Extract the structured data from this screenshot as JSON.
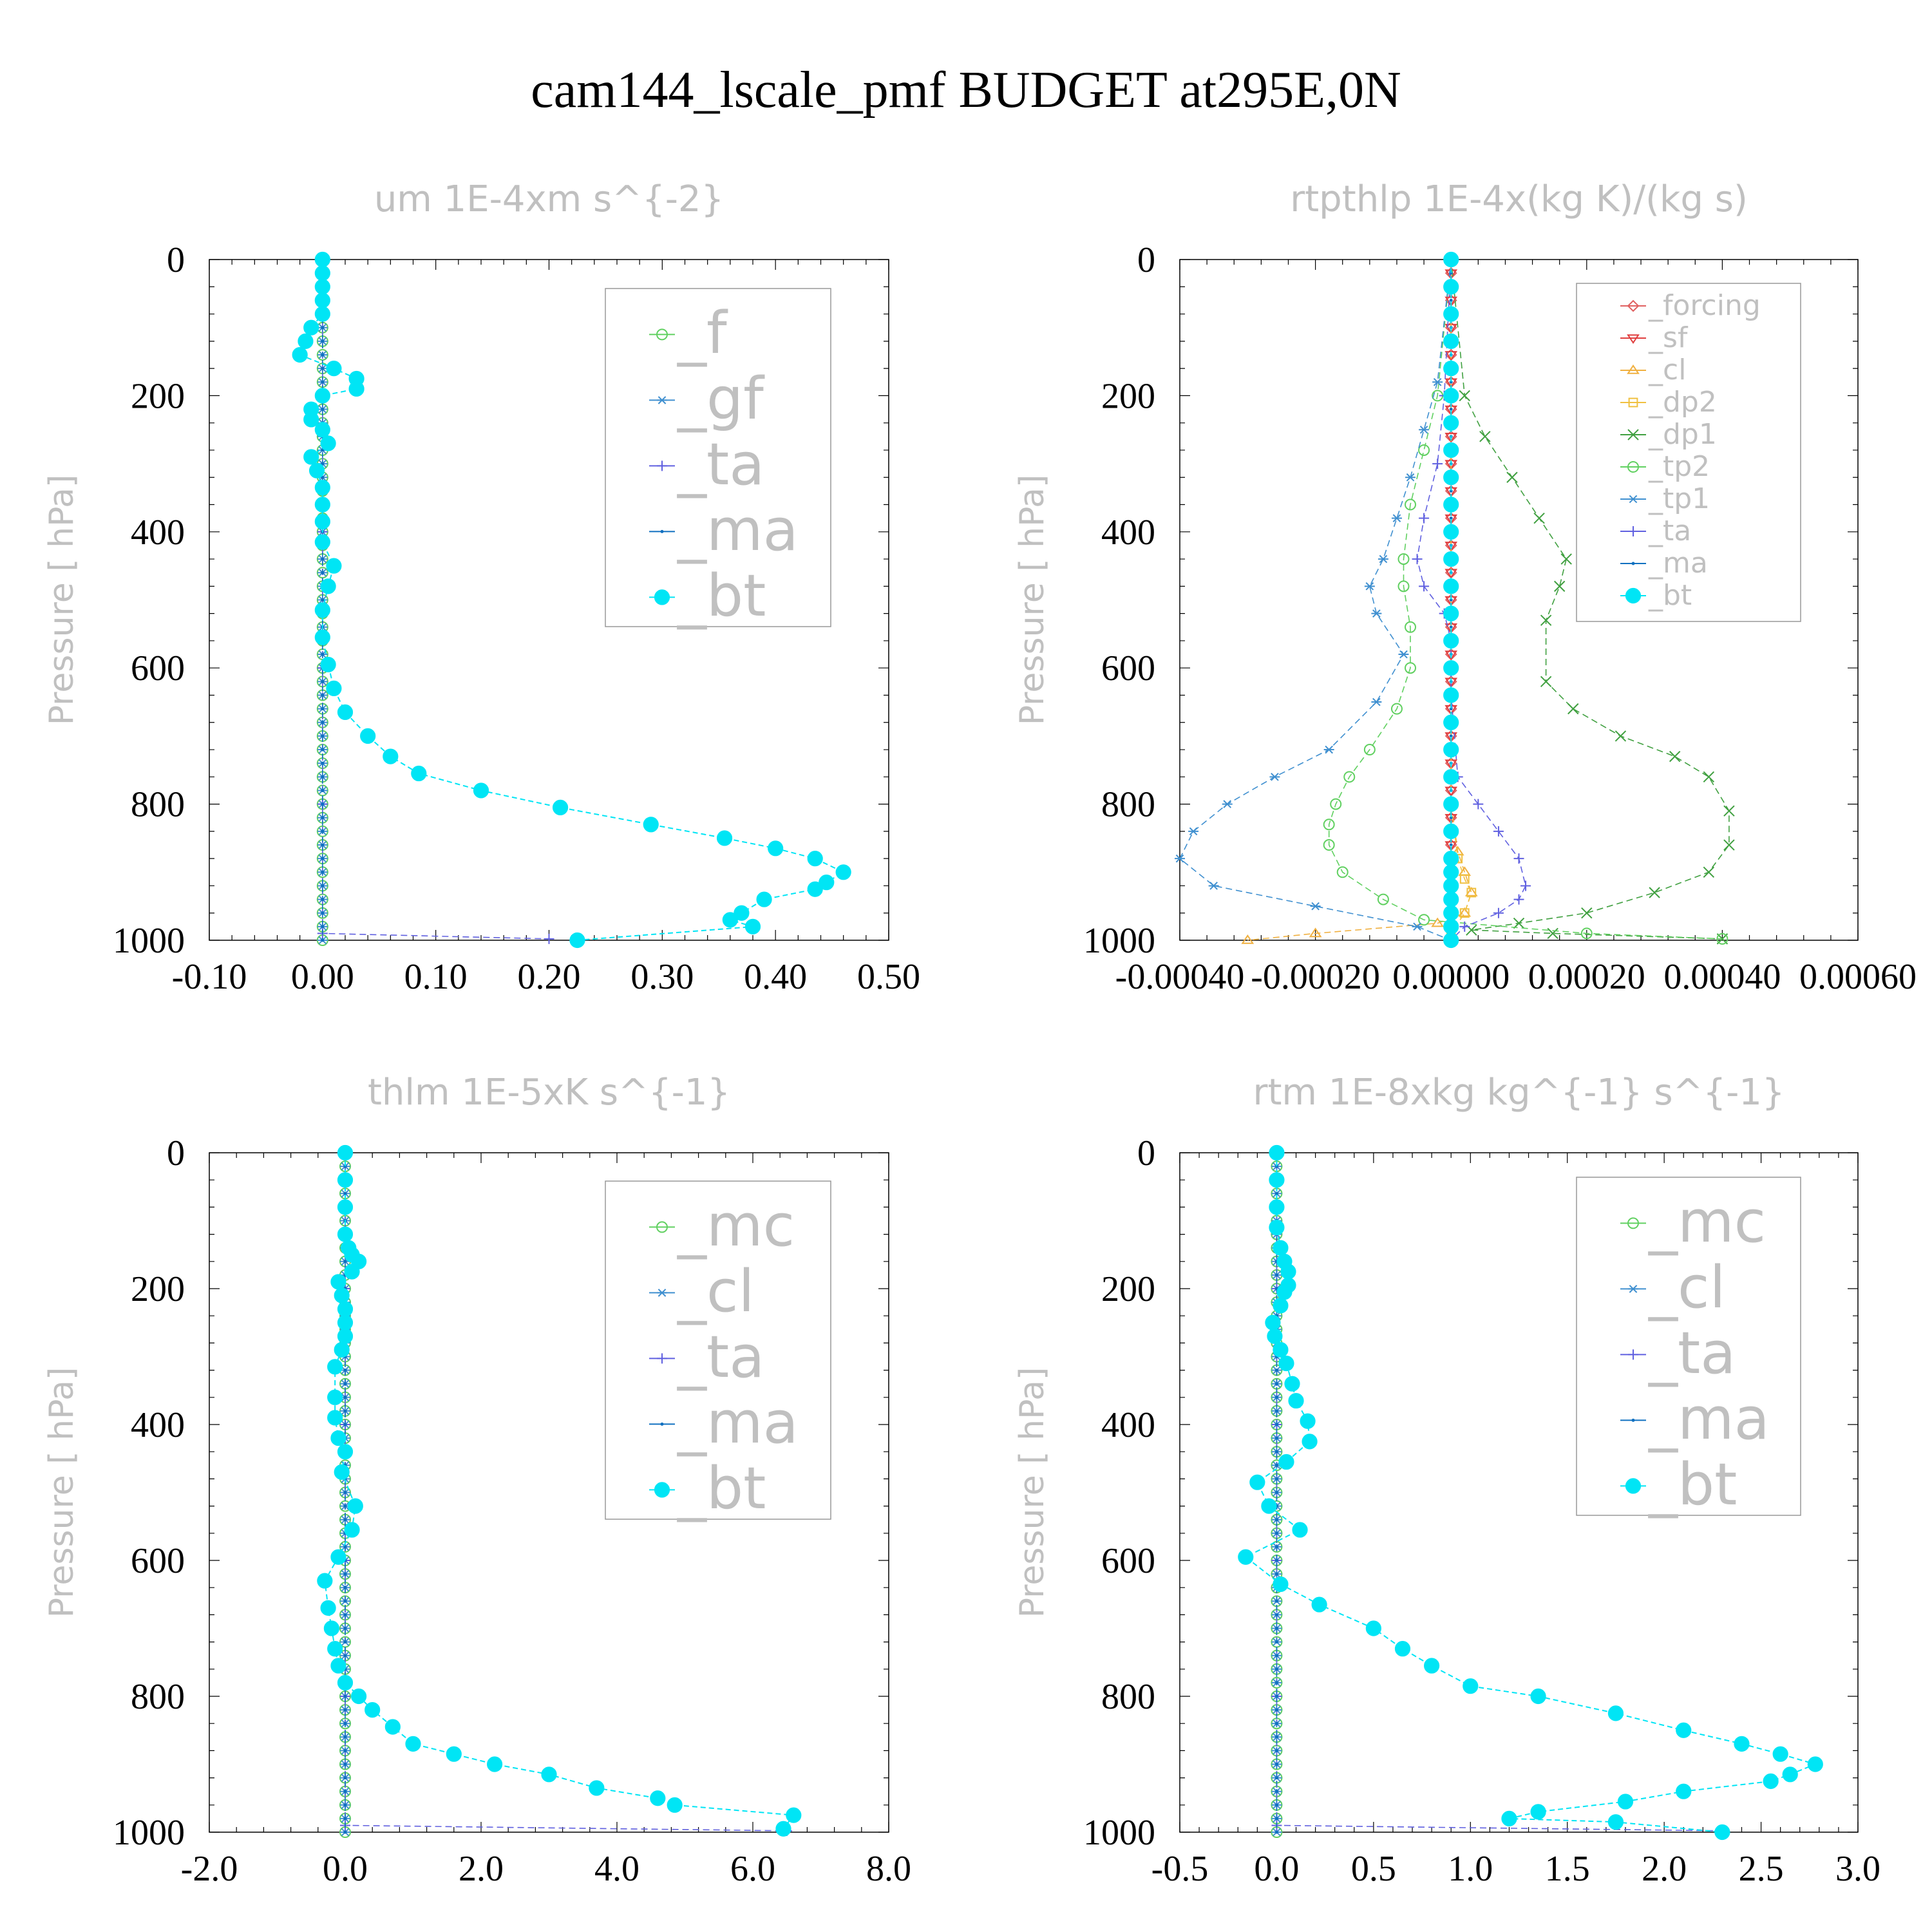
{
  "title": "cam144_lscale_pmf  BUDGET at295E,0N",
  "colors": {
    "_f": "#60d060",
    "_mc": "#60d060",
    "_tp2": "#60d060",
    "_gf": "#4090d0",
    "_cl": "#4090d0",
    "_tp1": "#4090d0",
    "_ta": "#6060e0",
    "_ma": "#1070c0",
    "_bt": "#00e5f5",
    "_forcing": "#e06060",
    "_sf": "#e04040",
    "_cl_rt": "#f0b040",
    "_dp2": "#f0c040",
    "_dp1": "#40a040"
  },
  "chart_data": [
    {
      "type": "line",
      "title": "um  1E-4xm s^{-2}",
      "ylabel": "Pressure [ hPa]",
      "xlim": [
        -0.1,
        0.5
      ],
      "ylim": [
        1000,
        0
      ],
      "xticks": [
        "-0.10",
        "0.00",
        "0.10",
        "0.20",
        "0.30",
        "0.40",
        "0.50"
      ],
      "yticks": [
        "0",
        "200",
        "400",
        "600",
        "800",
        "1000"
      ],
      "legend": [
        "_f",
        "_gf",
        "_ta",
        "_ma",
        "_bt"
      ],
      "legend_position": "top-right",
      "series": [
        {
          "name": "_f",
          "x": [
            0,
            0,
            0,
            0,
            0,
            0
          ],
          "y": [
            0,
            200,
            400,
            600,
            800,
            1000
          ]
        },
        {
          "name": "_gf",
          "x": [
            0,
            0,
            0,
            0,
            0,
            0
          ],
          "y": [
            0,
            200,
            400,
            600,
            800,
            1000
          ]
        },
        {
          "name": "_ta",
          "x": [
            0,
            0,
            0,
            0,
            0,
            0,
            0.2
          ],
          "y": [
            0,
            200,
            400,
            600,
            800,
            990,
            998
          ]
        },
        {
          "name": "_ma",
          "x": [
            0,
            0,
            0,
            0,
            0,
            0
          ],
          "y": [
            0,
            200,
            400,
            600,
            800,
            1000
          ]
        },
        {
          "name": "_bt",
          "x": [
            0,
            0,
            0,
            0,
            0,
            -0.01,
            -0.015,
            -0.02,
            0.01,
            0.03,
            0.03,
            0,
            -0.01,
            -0.01,
            0,
            0.005,
            -0.01,
            -0.005,
            0,
            0,
            0,
            0,
            0.01,
            0.005,
            0,
            0.0,
            0.005,
            0.01,
            0.02,
            0.04,
            0.06,
            0.085,
            0.14,
            0.21,
            0.29,
            0.355,
            0.4,
            0.435,
            0.46,
            0.445,
            0.435,
            0.39,
            0.37,
            0.36,
            0.38,
            0.225
          ],
          "y": [
            0,
            20,
            40,
            60,
            80,
            100,
            120,
            140,
            160,
            175,
            190,
            200,
            220,
            235,
            250,
            270,
            290,
            310,
            335,
            360,
            385,
            415,
            450,
            480,
            515,
            555,
            595,
            630,
            665,
            700,
            730,
            755,
            780,
            805,
            830,
            850,
            865,
            880,
            900,
            915,
            925,
            940,
            960,
            970,
            980,
            1000
          ]
        }
      ]
    },
    {
      "type": "line",
      "title": "rtpthlp  1E-4x(kg K)/(kg s)",
      "ylabel": "Pressure [ hPa]",
      "xlim": [
        -0.0004,
        0.0006
      ],
      "ylim": [
        1000,
        0
      ],
      "xticks": [
        "-0.00040",
        "-0.00020",
        "0.00000",
        "0.00020",
        "0.00040",
        "0.00060"
      ],
      "yticks": [
        "0",
        "200",
        "400",
        "600",
        "800",
        "1000"
      ],
      "legend": [
        "_forcing",
        "_sf",
        "_cl",
        "_dp2",
        "_dp1",
        "_tp2",
        "_tp1",
        "_ta",
        "_ma",
        "_bt"
      ],
      "legend_position": "top-right",
      "series": [
        {
          "name": "_forcing",
          "x": [
            0,
            0,
            0,
            0,
            0,
            0
          ],
          "y": [
            0,
            200,
            400,
            600,
            800,
            1000
          ]
        },
        {
          "name": "_sf",
          "x": [
            0,
            0,
            0,
            0,
            0,
            0
          ],
          "y": [
            0,
            200,
            400,
            600,
            800,
            1000
          ]
        },
        {
          "name": "_cl",
          "x": [
            0,
            0,
            0,
            1e-05,
            2e-05,
            3e-05,
            2e-05,
            -2e-05,
            -0.0002,
            -0.0003
          ],
          "y": [
            0,
            200,
            800,
            870,
            900,
            930,
            960,
            975,
            990,
            1000
          ]
        },
        {
          "name": "_dp2",
          "x": [
            0,
            0,
            0,
            1e-05,
            2e-05,
            3e-05,
            2e-05,
            0
          ],
          "y": [
            0,
            200,
            800,
            880,
            910,
            930,
            960,
            990
          ]
        },
        {
          "name": "_dp1",
          "x": [
            0,
            2e-05,
            5e-05,
            9e-05,
            0.00013,
            0.00017,
            0.00016,
            0.00014,
            0.00014,
            0.00018,
            0.00025,
            0.00033,
            0.00038,
            0.00041,
            0.00041,
            0.00038,
            0.0003,
            0.0002,
            0.0001,
            3e-05,
            0.00015,
            0.0004
          ],
          "y": [
            0,
            200,
            260,
            320,
            380,
            440,
            480,
            530,
            620,
            660,
            700,
            730,
            760,
            810,
            860,
            900,
            930,
            960,
            975,
            985,
            990,
            998
          ]
        },
        {
          "name": "_tp2",
          "x": [
            0,
            -2e-05,
            -4e-05,
            -6e-05,
            -7e-05,
            -7e-05,
            -6e-05,
            -6e-05,
            -8e-05,
            -0.00012,
            -0.00015,
            -0.00017,
            -0.00018,
            -0.00018,
            -0.00016,
            -0.0001,
            -4e-05,
            0.0002,
            0.0004
          ],
          "y": [
            0,
            200,
            280,
            360,
            440,
            480,
            540,
            600,
            660,
            720,
            760,
            800,
            830,
            860,
            900,
            940,
            970,
            990,
            998
          ]
        },
        {
          "name": "_tp1",
          "x": [
            0,
            -2e-05,
            -4e-05,
            -6e-05,
            -8e-05,
            -0.0001,
            -0.00012,
            -0.00011,
            -7e-05,
            -0.00011,
            -0.00018,
            -0.00026,
            -0.00033,
            -0.00038,
            -0.0004,
            -0.00035,
            -0.0002,
            -5e-05,
            0
          ],
          "y": [
            0,
            180,
            250,
            320,
            380,
            440,
            480,
            520,
            580,
            650,
            720,
            760,
            800,
            840,
            880,
            920,
            950,
            980,
            1000
          ]
        },
        {
          "name": "_ta",
          "x": [
            0,
            -1e-05,
            -2e-05,
            -4e-05,
            -5e-05,
            -4e-05,
            -1e-05,
            0,
            0,
            1e-05,
            4e-05,
            7e-05,
            0.0001,
            0.00011,
            0.0001,
            7e-05,
            2e-05,
            0
          ],
          "y": [
            0,
            200,
            300,
            380,
            440,
            480,
            520,
            560,
            640,
            760,
            800,
            840,
            880,
            920,
            940,
            960,
            980,
            1000
          ]
        },
        {
          "name": "_ma",
          "x": [
            0,
            0,
            0,
            0,
            0,
            0
          ],
          "y": [
            0,
            200,
            400,
            600,
            800,
            1000
          ]
        },
        {
          "name": "_bt",
          "x": [
            0,
            0,
            0,
            0,
            0,
            0,
            0,
            0,
            0,
            0,
            0,
            0,
            0,
            0,
            0,
            0,
            0,
            0,
            0,
            0,
            0,
            0,
            0,
            0,
            0,
            0,
            0,
            0,
            0
          ],
          "y": [
            0,
            40,
            80,
            120,
            160,
            200,
            240,
            280,
            320,
            360,
            400,
            440,
            480,
            520,
            560,
            600,
            640,
            680,
            720,
            760,
            800,
            840,
            880,
            900,
            920,
            940,
            960,
            980,
            1000
          ]
        }
      ]
    },
    {
      "type": "line",
      "title": "thlm  1E-5xK s^{-1}",
      "ylabel": "Pressure [ hPa]",
      "xlim": [
        -2.0,
        8.0
      ],
      "ylim": [
        1000,
        0
      ],
      "xticks": [
        "-2.0",
        "0.0",
        "2.0",
        "4.0",
        "6.0",
        "8.0"
      ],
      "yticks": [
        "0",
        "200",
        "400",
        "600",
        "800",
        "1000"
      ],
      "legend": [
        "_mc",
        "_cl",
        "_ta",
        "_ma",
        "_bt"
      ],
      "legend_position": "top-right",
      "series": [
        {
          "name": "_mc",
          "x": [
            0,
            0,
            0,
            0,
            0,
            0
          ],
          "y": [
            0,
            200,
            400,
            600,
            800,
            1000
          ]
        },
        {
          "name": "_cl",
          "x": [
            0,
            0,
            0,
            0,
            0,
            0
          ],
          "y": [
            0,
            200,
            400,
            600,
            800,
            1000
          ]
        },
        {
          "name": "_ta",
          "x": [
            0,
            0,
            0,
            0,
            0,
            0,
            6.5
          ],
          "y": [
            0,
            200,
            400,
            600,
            800,
            990,
            998
          ]
        },
        {
          "name": "_ma",
          "x": [
            0,
            0,
            0,
            0,
            0,
            0
          ],
          "y": [
            0,
            200,
            400,
            600,
            800,
            1000
          ]
        },
        {
          "name": "_bt",
          "x": [
            0,
            0,
            0,
            0,
            0.05,
            0.1,
            0.2,
            0.1,
            -0.1,
            -0.05,
            0,
            0,
            0,
            -0.05,
            -0.15,
            -0.15,
            -0.15,
            -0.1,
            0,
            -0.05,
            0.15,
            0.1,
            -0.1,
            -0.3,
            -0.25,
            -0.2,
            -0.15,
            -0.1,
            0,
            0.2,
            0.4,
            0.7,
            1.0,
            1.6,
            2.2,
            3.0,
            3.7,
            4.6,
            4.85,
            6.6,
            6.45
          ],
          "y": [
            0,
            40,
            80,
            120,
            140,
            150,
            160,
            175,
            190,
            210,
            230,
            250,
            270,
            290,
            315,
            360,
            390,
            420,
            440,
            470,
            520,
            555,
            595,
            630,
            670,
            700,
            730,
            755,
            780,
            800,
            820,
            845,
            870,
            885,
            900,
            915,
            935,
            950,
            960,
            975,
            995
          ]
        }
      ]
    },
    {
      "type": "line",
      "title": "rtm  1E-8xkg kg^{-1} s^{-1}",
      "ylabel": "Pressure [ hPa]",
      "xlim": [
        -0.5,
        3.0
      ],
      "ylim": [
        1000,
        0
      ],
      "xticks": [
        "-0.5",
        "0.0",
        "0.5",
        "1.0",
        "1.5",
        "2.0",
        "2.5",
        "3.0"
      ],
      "yticks": [
        "0",
        "200",
        "400",
        "600",
        "800",
        "1000"
      ],
      "legend": [
        "_mc",
        "_cl",
        "_ta",
        "_ma",
        "_bt"
      ],
      "legend_position": "top-right",
      "series": [
        {
          "name": "_mc",
          "x": [
            0,
            0,
            0,
            0,
            0,
            0
          ],
          "y": [
            0,
            200,
            400,
            600,
            800,
            1000
          ]
        },
        {
          "name": "_cl",
          "x": [
            0,
            0,
            0,
            0,
            0,
            0
          ],
          "y": [
            0,
            200,
            400,
            600,
            800,
            1000
          ]
        },
        {
          "name": "_ta",
          "x": [
            0,
            0,
            0,
            0,
            0,
            0,
            2.3
          ],
          "y": [
            0,
            200,
            400,
            600,
            800,
            990,
            998
          ]
        },
        {
          "name": "_ma",
          "x": [
            0,
            0,
            0,
            0,
            0,
            0
          ],
          "y": [
            0,
            200,
            400,
            600,
            800,
            1000
          ]
        },
        {
          "name": "_bt",
          "x": [
            0,
            0,
            0,
            0,
            0.02,
            0.04,
            0.06,
            0.06,
            0.04,
            0.02,
            -0.02,
            -0.01,
            0.02,
            0.05,
            0.08,
            0.1,
            0.16,
            0.17,
            0.05,
            -0.1,
            -0.04,
            0.12,
            -0.16,
            0.02,
            0.22,
            0.5,
            0.65,
            0.8,
            1.0,
            1.35,
            1.75,
            2.1,
            2.4,
            2.6,
            2.78,
            2.65,
            2.55,
            2.1,
            1.8,
            1.35,
            1.2,
            1.75,
            2.3
          ],
          "y": [
            0,
            40,
            80,
            110,
            140,
            160,
            175,
            195,
            205,
            225,
            250,
            270,
            290,
            310,
            340,
            365,
            395,
            425,
            455,
            485,
            520,
            555,
            595,
            635,
            665,
            700,
            730,
            755,
            785,
            800,
            825,
            850,
            870,
            885,
            900,
            915,
            925,
            940,
            955,
            970,
            980,
            985,
            1000
          ]
        }
      ]
    }
  ]
}
